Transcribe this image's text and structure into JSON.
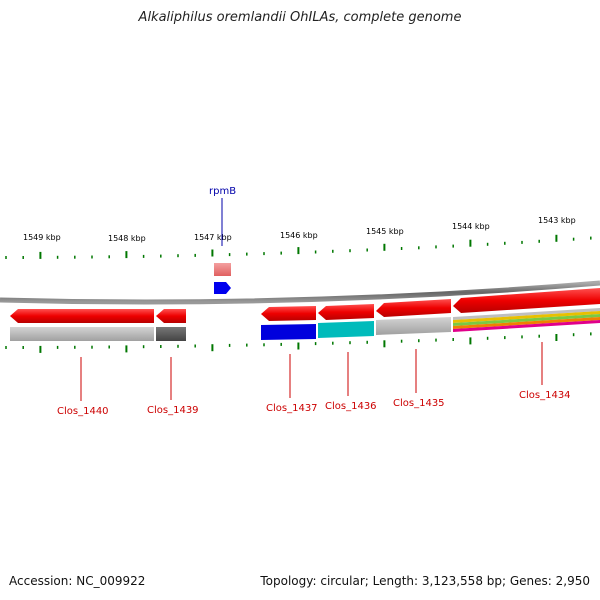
{
  "title": "Alkaliphilus oremlandii OhILAs, complete genome",
  "footer": {
    "accession": "Accession: NC_009922",
    "summary": "Topology: circular; Length: 3,123,558 bp; Genes: 2,950"
  },
  "scale_labels": [
    "1549 kbp",
    "1548 kbp",
    "1547 kbp",
    "1546 kbp",
    "1545 kbp",
    "1544 kbp",
    "1543 kbp"
  ],
  "genes": [
    "Clos_1440",
    "Clos_1439",
    "Clos_1437",
    "Clos_1436",
    "Clos_1435",
    "Clos_1434"
  ],
  "rna": "rpmB",
  "colors": {
    "cds": "#ee0000",
    "rna_feature": "#ee7777",
    "rna_gene": "#0000ee",
    "backbone": "#888888",
    "ticks": "#007700",
    "gene_label": "#cc0000",
    "rna_label": "#0000aa",
    "cog_gray": "#b0b0b0",
    "cog_dark": "#555555",
    "cog_blue": "#0000dd",
    "cog_cyan": "#00bbbb"
  }
}
